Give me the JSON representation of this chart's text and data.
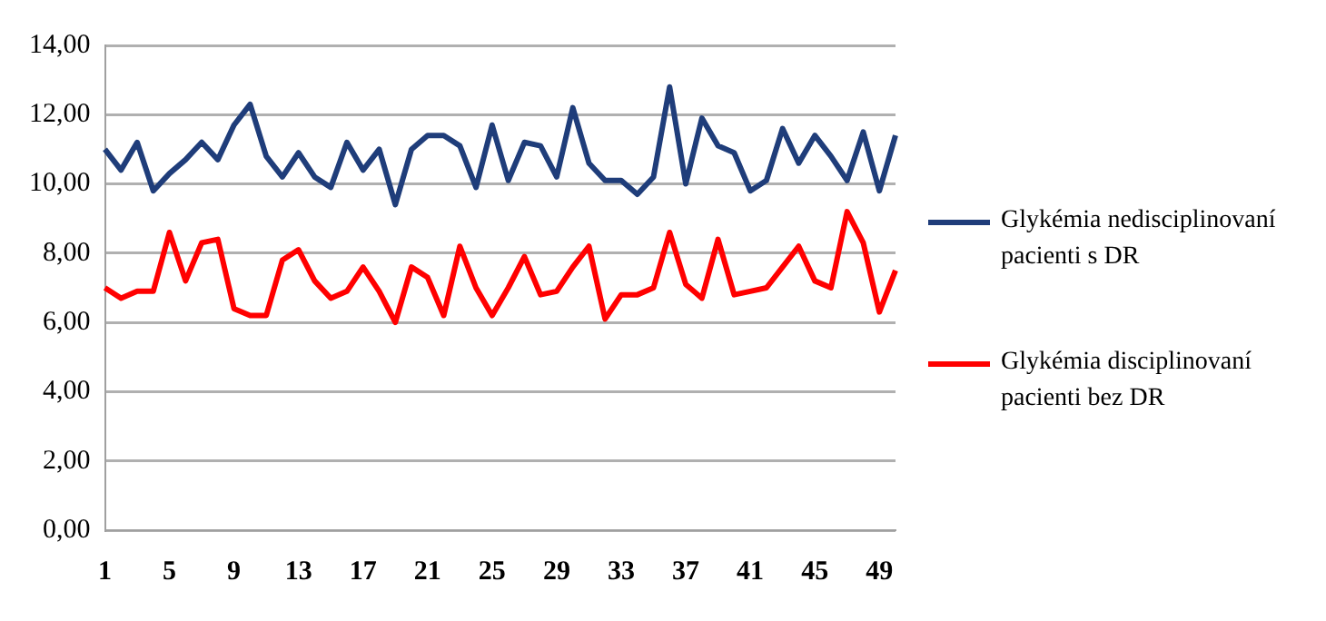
{
  "chart_data": {
    "type": "line",
    "categories": [
      "1",
      null,
      null,
      null,
      "5",
      null,
      null,
      null,
      "9",
      null,
      null,
      null,
      "13",
      null,
      null,
      null,
      "17",
      null,
      null,
      null,
      "21",
      null,
      null,
      null,
      "25",
      null,
      null,
      null,
      "29",
      null,
      null,
      null,
      "33",
      null,
      null,
      null,
      "37",
      null,
      null,
      null,
      "41",
      null,
      null,
      null,
      "45",
      null,
      null,
      null,
      "49",
      null
    ],
    "series": [
      {
        "name": "Glykémia nedisciplinovaní pacienti s DR",
        "color": "#1f3d7a",
        "values": [
          11.0,
          10.4,
          11.2,
          9.8,
          10.3,
          10.7,
          11.2,
          10.7,
          11.7,
          12.3,
          10.8,
          10.2,
          10.9,
          10.2,
          9.9,
          11.2,
          10.4,
          11.0,
          9.4,
          11.0,
          11.4,
          11.4,
          11.1,
          9.9,
          11.7,
          10.1,
          11.2,
          11.1,
          10.2,
          12.2,
          10.6,
          10.1,
          10.1,
          9.7,
          10.2,
          12.8,
          10.0,
          11.9,
          11.1,
          10.9,
          9.8,
          10.1,
          11.6,
          10.6,
          11.4,
          10.8,
          10.1,
          11.5,
          9.8,
          11.4
        ]
      },
      {
        "name": "Glykémia disciplinovaní pacienti bez DR",
        "color": "#ff0000",
        "values": [
          7.0,
          6.7,
          6.9,
          6.9,
          8.6,
          7.2,
          8.3,
          8.4,
          6.4,
          6.2,
          6.2,
          7.8,
          8.1,
          7.2,
          6.7,
          6.9,
          7.6,
          6.9,
          6.0,
          7.6,
          7.3,
          6.2,
          8.2,
          7.0,
          6.2,
          7.0,
          7.9,
          6.8,
          6.9,
          7.6,
          8.2,
          6.1,
          6.8,
          6.8,
          7.0,
          8.6,
          7.1,
          6.7,
          8.4,
          6.8,
          6.9,
          7.0,
          7.6,
          8.2,
          7.2,
          7.0,
          9.2,
          8.3,
          6.3,
          7.5
        ]
      }
    ],
    "ylim": [
      0,
      14
    ],
    "yticks": [
      {
        "value": 0,
        "label": "0,00"
      },
      {
        "value": 2,
        "label": "2,00"
      },
      {
        "value": 4,
        "label": "4,00"
      },
      {
        "value": 6,
        "label": "6,00"
      },
      {
        "value": 8,
        "label": "8,00"
      },
      {
        "value": 10,
        "label": "10,00"
      },
      {
        "value": 12,
        "label": "12,00"
      },
      {
        "value": 14,
        "label": "14,00"
      }
    ],
    "grid": "y",
    "legend": "right",
    "marker": "none",
    "line_style": "solid"
  }
}
